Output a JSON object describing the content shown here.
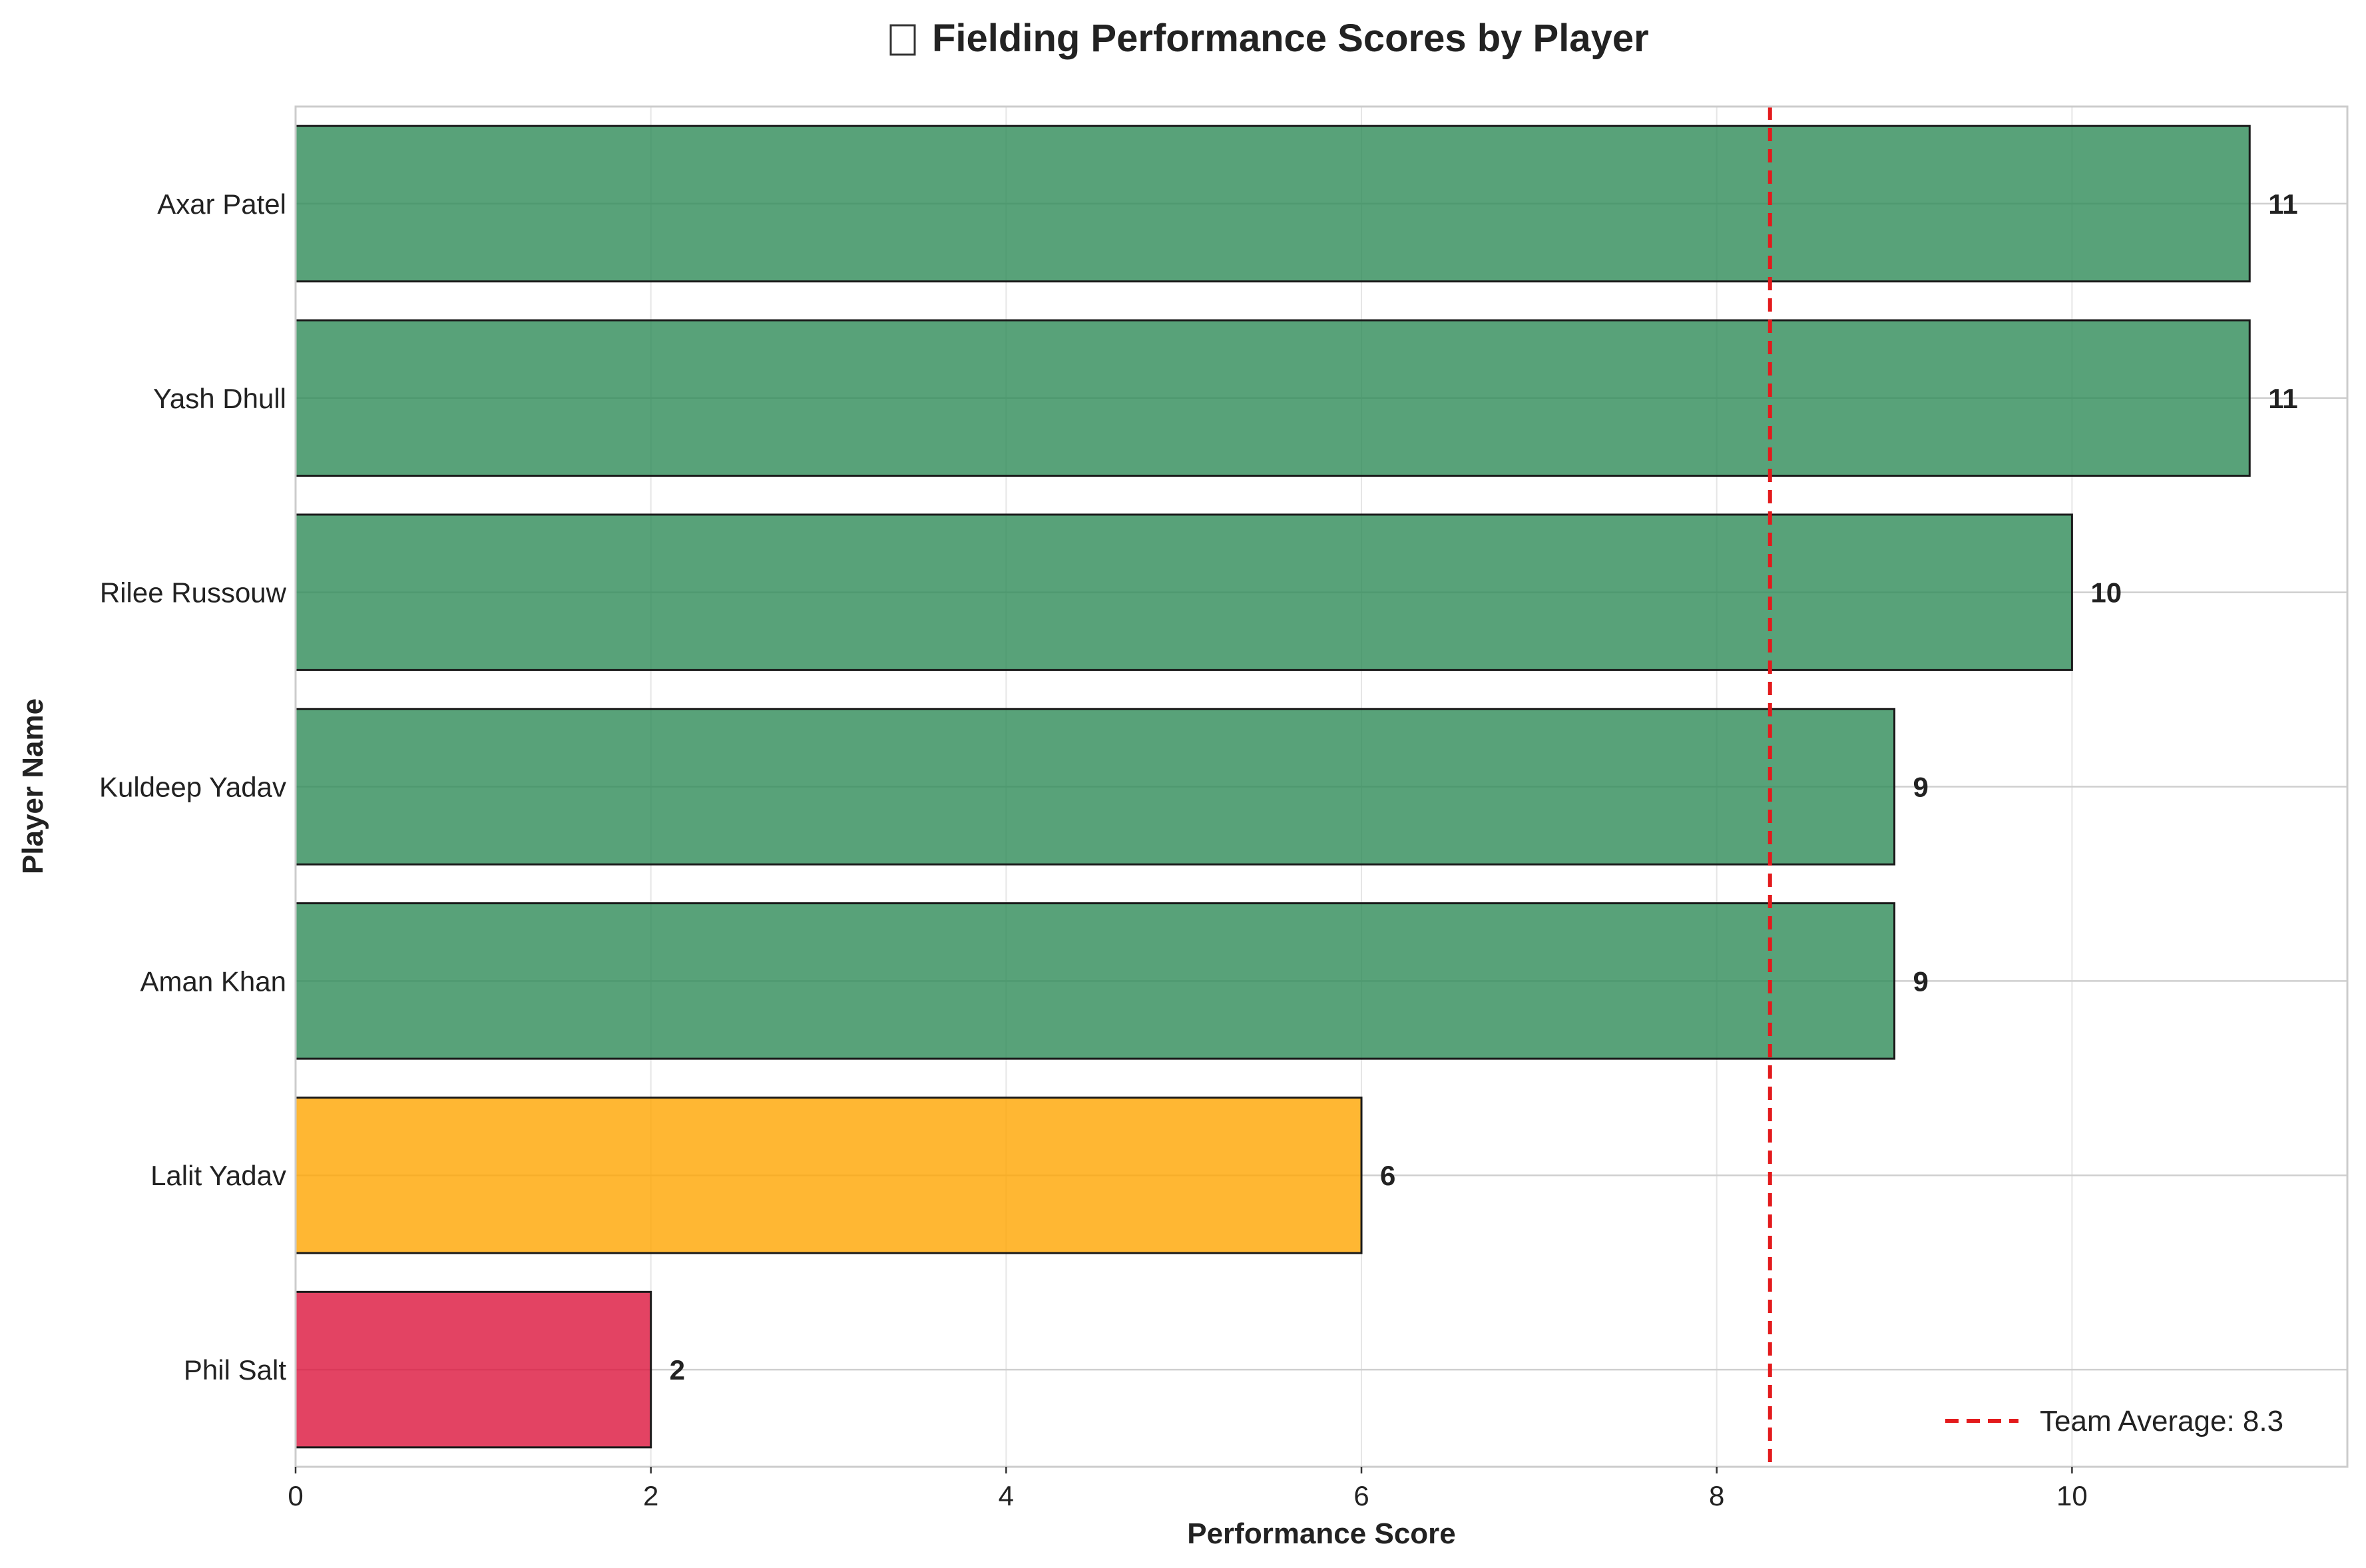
{
  "chart_data": {
    "type": "bar",
    "orientation": "horizontal",
    "title": "Fielding Performance Scores by Player",
    "title_icon": "cricket-icon",
    "xlabel": "Performance Score",
    "ylabel": "Player Name",
    "xlim": [
      0,
      11.55
    ],
    "xticks": [
      0,
      2,
      4,
      6,
      8,
      10
    ],
    "categories": [
      "Axar Patel",
      "Yash Dhull",
      "Rilee Russouw",
      "Kuldeep Yadav",
      "Aman Khan",
      "Lalit Yadav",
      "Phil Salt"
    ],
    "values": [
      11,
      11,
      10,
      9,
      9,
      6,
      2
    ],
    "bar_colors": [
      "#2e8b57",
      "#2e8b57",
      "#2e8b57",
      "#2e8b57",
      "#2e8b57",
      "#ffa500",
      "#dc143c"
    ],
    "reference_line": {
      "value": 8.3,
      "label": "Team Average: 8.3",
      "color": "#e31a1c",
      "style": "dashed"
    },
    "legend_position": "lower-right",
    "grid": true
  }
}
